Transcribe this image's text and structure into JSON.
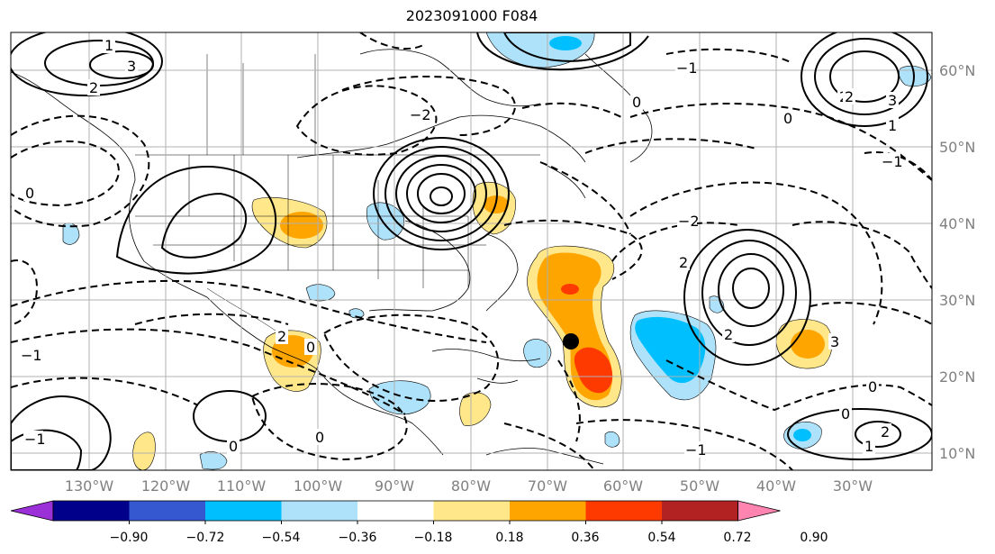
{
  "title": "2023091000 F084",
  "lon_labels": [
    "130°W",
    "120°W",
    "110°W",
    "100°W",
    "90°W",
    "80°W",
    "70°W",
    "60°W",
    "50°W",
    "40°W",
    "30°W"
  ],
  "lat_labels": [
    "60°N",
    "50°N",
    "40°N",
    "30°N",
    "20°N",
    "10°N"
  ],
  "colorbar": {
    "ticks": [
      "−0.90",
      "−0.72",
      "−0.54",
      "−0.36",
      "−0.18",
      "0.18",
      "0.36",
      "0.54",
      "0.72",
      "0.90"
    ],
    "colors": [
      "#9b30d9",
      "#00008b",
      "#3558d0",
      "#00bfff",
      "#aee2fa",
      "#ffffff",
      "#ffe78a",
      "#ffa500",
      "#ff3a00",
      "#b22222",
      "#ff85b0"
    ]
  },
  "contour_labels": [
    "1",
    "3",
    "2",
    "0",
    "−2",
    "−1",
    "2",
    "0",
    "2",
    "−2",
    "−1",
    "0",
    "3",
    "2",
    "1",
    "−1",
    "2",
    "0",
    "0",
    "0",
    "2",
    "−1",
    "3",
    "0",
    "0",
    "1",
    "2",
    "−1"
  ],
  "fill_colors": {
    "light_yellow": "#ffe78a",
    "orange": "#ffa500",
    "red_orange": "#ff3a00",
    "light_blue": "#aee2fa",
    "blue": "#00bfff"
  }
}
